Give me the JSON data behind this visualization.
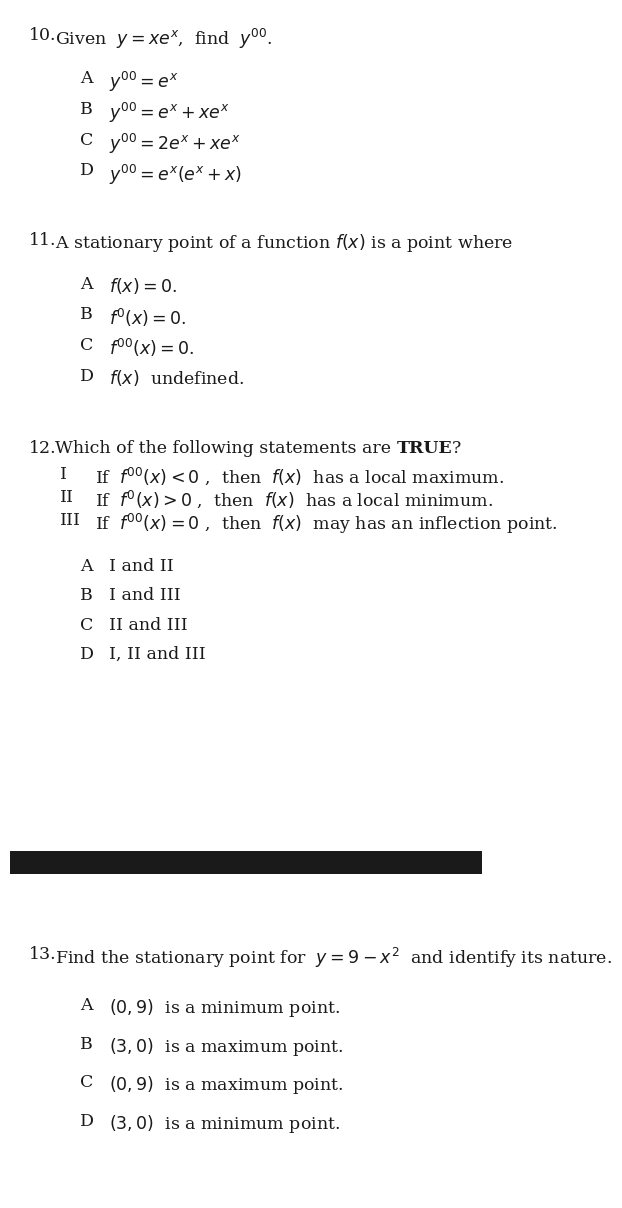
{
  "bg_color": "#ffffff",
  "divider_color": "#1a1a1a",
  "text_color": "#1a1a1a",
  "q10_number": "10.",
  "q10_question": "Given  $y = xe^x$,  find  $y''$.",
  "q10_options": [
    [
      "A",
      "$y'' = e^x$"
    ],
    [
      "B",
      "$y'' = e^x + xe^x$"
    ],
    [
      "C",
      "$y'' = 2e^x + xe^x$"
    ],
    [
      "D",
      "$y'' = e^x(e^x + x)$"
    ]
  ],
  "q11_number": "11.",
  "q11_question": "A stationary point of a function $f(x)$ is a point where",
  "q11_options": [
    [
      "A",
      "$f(x) = 0$."
    ],
    [
      "B",
      "$f'(x) = 0$."
    ],
    [
      "C",
      "$f''(x) = 0$."
    ],
    [
      "D",
      "$f(x)$  undefined."
    ]
  ],
  "q12_number": "12.",
  "q12_question_plain": "Which of the following statements are ",
  "q12_question_bold": "TRUE",
  "q12_question_end": "?",
  "q12_statements": [
    [
      "I",
      "If  $f''(x) < 0$ ,  then  $f(x)$  has a local maximum."
    ],
    [
      "II",
      "If  $f'(x) > 0$ ,  then  $f(x)$  has a local minimum."
    ],
    [
      "III",
      "If  $f''(x) = 0$ ,  then  $f(x)$  may has an inflection point."
    ]
  ],
  "q12_options": [
    [
      "A",
      "I and II"
    ],
    [
      "B",
      "I and III"
    ],
    [
      "C",
      "II and III"
    ],
    [
      "D",
      "I, II and III"
    ]
  ],
  "q13_number": "13.",
  "q13_question": "Find the stationary point for  $y = 9 - x^2$  and identify its nature.",
  "q13_options": [
    [
      "A",
      "$(0, 9)$  is a minimum point."
    ],
    [
      "B",
      "$(3, 0)$  is a maximum point."
    ],
    [
      "C",
      "$(0, 9)$  is a maximum point."
    ],
    [
      "D",
      "$(3, 0)$  is a minimum point."
    ]
  ]
}
